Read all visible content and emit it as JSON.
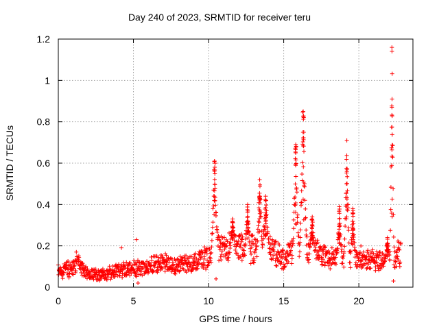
{
  "chart_data": {
    "type": "scatter",
    "title": "Day 240 of 2023, SRMTID for receiver teru",
    "xlabel": "GPS time / hours",
    "ylabel": "SRMTID / TECUs",
    "xlim": [
      0,
      23.6
    ],
    "ylim": [
      0,
      1.2
    ],
    "xticks": [
      0,
      5,
      10,
      15,
      20
    ],
    "yticks": [
      0,
      0.2,
      0.4,
      0.6,
      0.8,
      1,
      1.2
    ],
    "ytick_labels": [
      "0",
      "0.2",
      "0.4",
      "0.6",
      "0.8",
      "1",
      "1.2"
    ],
    "grid": true,
    "marker": "+",
    "color": "#ff0000",
    "profile": [
      [
        0,
        0.08
      ],
      [
        1,
        0.09
      ],
      [
        1.3,
        0.12
      ],
      [
        2,
        0.06
      ],
      [
        3,
        0.06
      ],
      [
        4,
        0.08
      ],
      [
        5,
        0.09
      ],
      [
        6,
        0.1
      ],
      [
        7,
        0.12
      ],
      [
        8,
        0.1
      ],
      [
        9,
        0.12
      ],
      [
        10,
        0.15
      ],
      [
        10.5,
        0.2
      ],
      [
        11,
        0.18
      ],
      [
        12,
        0.2
      ],
      [
        13,
        0.18
      ],
      [
        14,
        0.2
      ],
      [
        15,
        0.13
      ],
      [
        16,
        0.2
      ],
      [
        17,
        0.17
      ],
      [
        18,
        0.14
      ],
      [
        19,
        0.15
      ],
      [
        20,
        0.14
      ],
      [
        21,
        0.13
      ],
      [
        22,
        0.12
      ],
      [
        22.7,
        0.17
      ]
    ],
    "spikes": [
      {
        "center": 10.4,
        "peak": 0.61,
        "width": 0.1
      },
      {
        "center": 11.6,
        "peak": 0.33,
        "width": 0.08
      },
      {
        "center": 12.6,
        "peak": 0.4,
        "width": 0.08
      },
      {
        "center": 13.4,
        "peak": 0.52,
        "width": 0.08
      },
      {
        "center": 13.8,
        "peak": 0.44,
        "width": 0.1
      },
      {
        "center": 15.8,
        "peak": 0.69,
        "width": 0.09
      },
      {
        "center": 16.3,
        "peak": 0.85,
        "width": 0.1
      },
      {
        "center": 16.9,
        "peak": 0.34,
        "width": 0.08
      },
      {
        "center": 18.7,
        "peak": 0.39,
        "width": 0.07
      },
      {
        "center": 19.2,
        "peak": 0.71,
        "width": 0.08
      },
      {
        "center": 19.6,
        "peak": 0.38,
        "width": 0.07
      },
      {
        "center": 21.9,
        "peak": 0.24,
        "width": 0.08
      },
      {
        "center": 22.2,
        "peak": 1.16,
        "width": 0.06
      }
    ],
    "outliers": [
      [
        5.2,
        0.23
      ],
      [
        4.2,
        0.19
      ],
      [
        5.3,
        0.02
      ],
      [
        22.3,
        0.03
      ],
      [
        1.2,
        0.17
      ],
      [
        10.5,
        0.04
      ]
    ],
    "n_points": 1300,
    "x_range": [
      0,
      22.8
    ]
  }
}
